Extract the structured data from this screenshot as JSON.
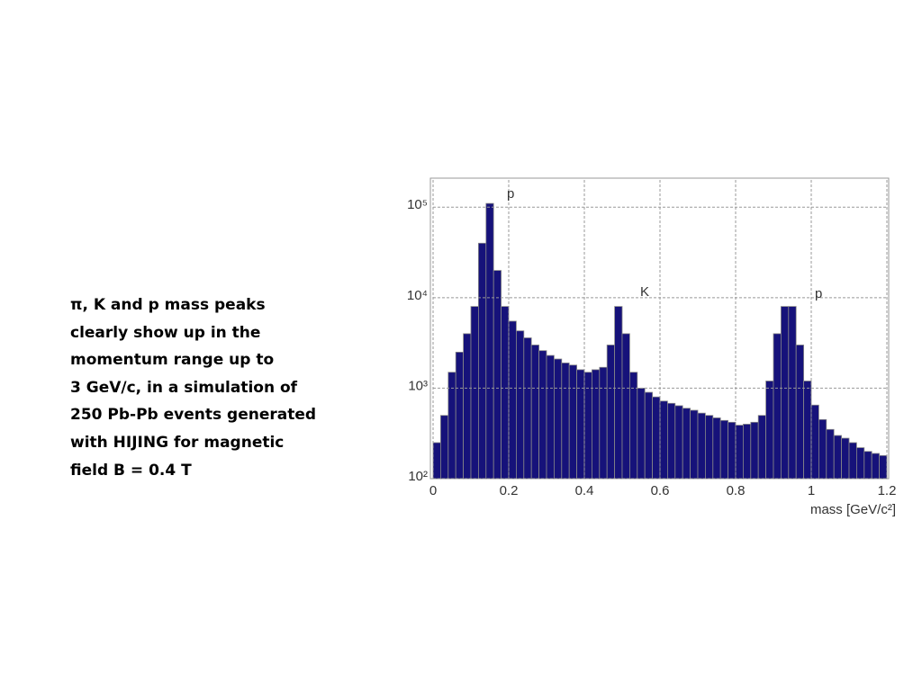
{
  "slide_text": [
    "π, K and p mass peaks",
    "clearly show up in the",
    "momentum range up to",
    "3 GeV/c, in a simulation of",
    "250 Pb-Pb events generated",
    "with HIJING for magnetic",
    "field B = 0.4 T"
  ],
  "chart_data": {
    "type": "histogram",
    "x_label": "mass [GeV/c²]",
    "annotations": [
      "p",
      "K",
      "p"
    ],
    "color": "#16127a",
    "log_y": true,
    "grid": true,
    "bins": [
      0,
      0.02,
      0.04,
      0.06,
      0.08,
      0.1,
      0.12,
      0.14,
      0.16,
      0.18,
      0.2,
      0.22,
      0.24,
      0.26,
      0.28,
      0.3,
      0.32,
      0.34,
      0.36,
      0.38,
      0.4,
      0.42,
      0.44,
      0.46,
      0.48,
      0.5,
      0.52,
      0.54,
      0.56,
      0.58,
      0.6,
      0.62,
      0.64,
      0.66,
      0.68,
      0.7,
      0.72,
      0.74,
      0.76,
      0.78,
      0.8,
      0.82,
      0.84,
      0.86,
      0.88,
      0.9,
      0.92,
      0.94,
      0.96,
      0.98,
      1,
      1.02,
      1.04,
      1.06,
      1.08,
      1.1,
      1.12,
      1.14,
      1.16,
      1.18,
      1.2
    ],
    "values": [
      250,
      500,
      1500,
      2500,
      4000,
      8000,
      40000,
      110000,
      20000,
      8000,
      5500,
      4300,
      3600,
      3000,
      2600,
      2300,
      2100,
      1900,
      1800,
      1600,
      1500,
      1600,
      1700,
      3000,
      8000,
      4000,
      1500,
      1000,
      900,
      800,
      720,
      680,
      640,
      600,
      570,
      530,
      500,
      470,
      440,
      420,
      390,
      400,
      420,
      500,
      1200,
      4000,
      8000,
      8000,
      3000,
      1200,
      650,
      450,
      350,
      300,
      280,
      250,
      220,
      200,
      190,
      180
    ],
    "xlim": [
      0,
      1.2
    ],
    "ylim": [
      100,
      200000
    ],
    "xticks": [
      0,
      0.2,
      0.4,
      0.6,
      0.8,
      1,
      1.2
    ],
    "yticks": [
      {
        "value": 100,
        "label": "10²"
      },
      {
        "value": 1000,
        "label": "10³"
      },
      {
        "value": 10000,
        "label": "10⁴"
      },
      {
        "value": 100000,
        "label": "10⁵"
      }
    ]
  }
}
